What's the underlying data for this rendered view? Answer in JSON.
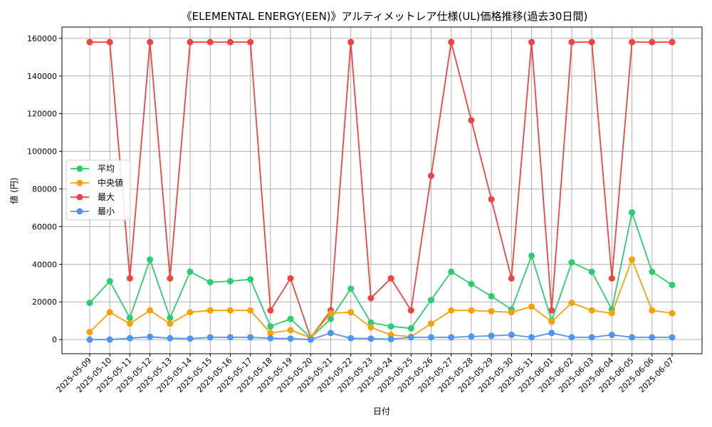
{
  "chart_data": {
    "type": "line",
    "title": "《ELEMENTAL ENERGY(EEN)》アルティメットレア仕様(UL)価格推移(過去30日間)",
    "xlabel": "日付",
    "ylabel": "値 (円)",
    "ylim": [
      -7500,
      166000
    ],
    "yticks": [
      0,
      20000,
      40000,
      60000,
      80000,
      100000,
      120000,
      140000,
      160000
    ],
    "grid": true,
    "legend_position": "center-left",
    "categories": [
      "2025-05-09",
      "2025-05-10",
      "2025-05-11",
      "2025-05-12",
      "2025-05-13",
      "2025-05-14",
      "2025-05-15",
      "2025-05-16",
      "2025-05-17",
      "2025-05-18",
      "2025-05-19",
      "2025-05-20",
      "2025-05-21",
      "2025-05-22",
      "2025-05-23",
      "2025-05-24",
      "2025-05-25",
      "2025-05-26",
      "2025-05-27",
      "2025-05-28",
      "2025-05-29",
      "2025-05-30",
      "2025-05-31",
      "2025-06-01",
      "2025-06-02",
      "2025-06-03",
      "2025-06-04",
      "2025-06-05",
      "2025-06-06",
      "2025-06-07"
    ],
    "series": [
      {
        "name": "平均",
        "color": "#2ecc71",
        "values": [
          19500,
          31000,
          11500,
          42500,
          11500,
          36000,
          30500,
          31000,
          32000,
          7000,
          11000,
          1000,
          11000,
          27000,
          9000,
          7000,
          6000,
          21000,
          36000,
          29500,
          23000,
          16000,
          44500,
          10000,
          41000,
          36000,
          16000,
          67500,
          36000,
          29000
        ]
      },
      {
        "name": "中央値",
        "color": "#f5a20a",
        "values": [
          4000,
          14500,
          8500,
          15500,
          8500,
          14500,
          15500,
          15500,
          15500,
          3500,
          5000,
          1000,
          14000,
          14500,
          6500,
          2500,
          1500,
          8500,
          15500,
          15500,
          15000,
          14500,
          17500,
          9500,
          19500,
          15500,
          14000,
          42500,
          15500,
          14000
        ]
      },
      {
        "name": "最大",
        "color": "#ef4444",
        "values": [
          158000,
          158000,
          32500,
          158000,
          32500,
          158000,
          158000,
          158000,
          158000,
          15500,
          32500,
          1000,
          15500,
          158000,
          22000,
          32500,
          15500,
          87000,
          158000,
          116500,
          74500,
          32500,
          158000,
          15500,
          158000,
          158000,
          32500,
          158000,
          158000,
          158000
        ]
      },
      {
        "name": "最小",
        "color": "#4f94ef",
        "values": [
          0,
          0,
          700,
          1500,
          700,
          500,
          1200,
          1200,
          1200,
          700,
          500,
          0,
          3500,
          700,
          500,
          200,
          1200,
          1200,
          1200,
          1600,
          2000,
          2500,
          1200,
          3500,
          1200,
          1200,
          2500,
          1200,
          1200,
          1200
        ]
      }
    ]
  }
}
